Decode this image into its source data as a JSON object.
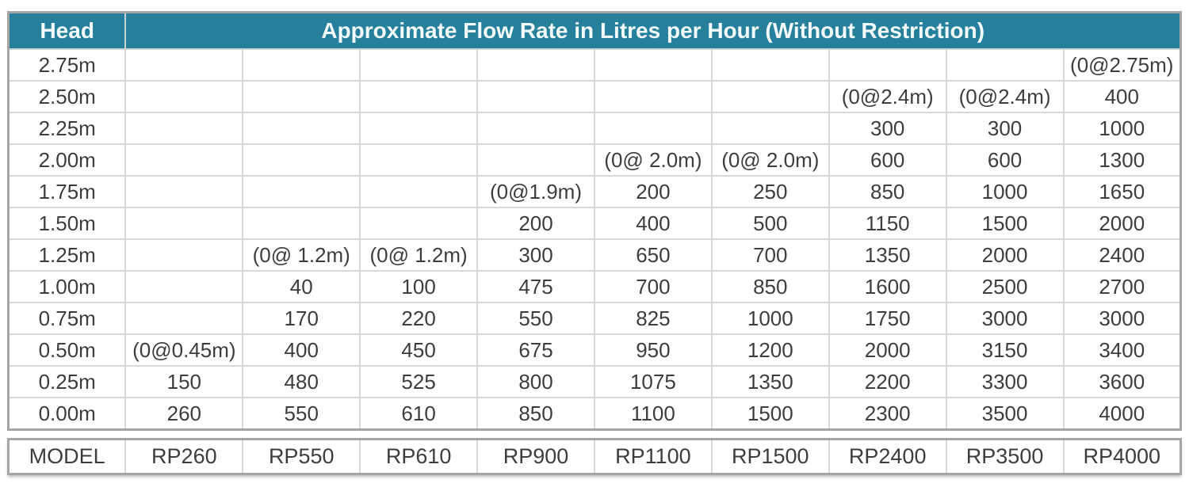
{
  "colors": {
    "header_bg": "#26809C",
    "header_text": "#F4FBFD",
    "body_text": "#3D3D3D",
    "inner_border": "#D8D8D8",
    "outer_border": "#A6A6A6"
  },
  "chart_data": {
    "type": "table",
    "title": "Approximate Flow Rate in Litres per Hour (Without Restriction)",
    "row_header_label": "Head",
    "model_row_label": "MODEL",
    "models": [
      "RP260",
      "RP550",
      "RP610",
      "RP900",
      "RP1100",
      "RP1500",
      "RP2400",
      "RP3500",
      "RP4000"
    ],
    "head_values": [
      "2.75m",
      "2.50m",
      "2.25m",
      "2.00m",
      "1.75m",
      "1.50m",
      "1.25m",
      "1.00m",
      "0.75m",
      "0.50m",
      "0.25m",
      "0.00m"
    ],
    "rows": [
      {
        "head": "2.75m",
        "values": [
          "",
          "",
          "",
          "",
          "",
          "",
          "",
          "",
          "(0@2.75m)"
        ]
      },
      {
        "head": "2.50m",
        "values": [
          "",
          "",
          "",
          "",
          "",
          "",
          "(0@2.4m)",
          "(0@2.4m)",
          "400"
        ]
      },
      {
        "head": "2.25m",
        "values": [
          "",
          "",
          "",
          "",
          "",
          "",
          "300",
          "300",
          "1000"
        ]
      },
      {
        "head": "2.00m",
        "values": [
          "",
          "",
          "",
          "",
          "(0@ 2.0m)",
          "(0@ 2.0m)",
          "600",
          "600",
          "1300"
        ]
      },
      {
        "head": "1.75m",
        "values": [
          "",
          "",
          "",
          "(0@1.9m)",
          "200",
          "250",
          "850",
          "1000",
          "1650"
        ]
      },
      {
        "head": "1.50m",
        "values": [
          "",
          "",
          "",
          "200",
          "400",
          "500",
          "1150",
          "1500",
          "2000"
        ]
      },
      {
        "head": "1.25m",
        "values": [
          "",
          "(0@ 1.2m)",
          "(0@ 1.2m)",
          "300",
          "650",
          "700",
          "1350",
          "2000",
          "2400"
        ]
      },
      {
        "head": "1.00m",
        "values": [
          "",
          "40",
          "100",
          "475",
          "700",
          "850",
          "1600",
          "2500",
          "2700"
        ]
      },
      {
        "head": "0.75m",
        "values": [
          "",
          "170",
          "220",
          "550",
          "825",
          "1000",
          "1750",
          "3000",
          "3000"
        ]
      },
      {
        "head": "0.50m",
        "values": [
          "(0@0.45m)",
          "400",
          "450",
          "675",
          "950",
          "1200",
          "2000",
          "3150",
          "3400"
        ]
      },
      {
        "head": "0.25m",
        "values": [
          "150",
          "480",
          "525",
          "800",
          "1075",
          "1350",
          "2200",
          "3300",
          "3600"
        ]
      },
      {
        "head": "0.00m",
        "values": [
          "260",
          "550",
          "610",
          "850",
          "1100",
          "1500",
          "2300",
          "3500",
          "4000"
        ]
      }
    ]
  }
}
